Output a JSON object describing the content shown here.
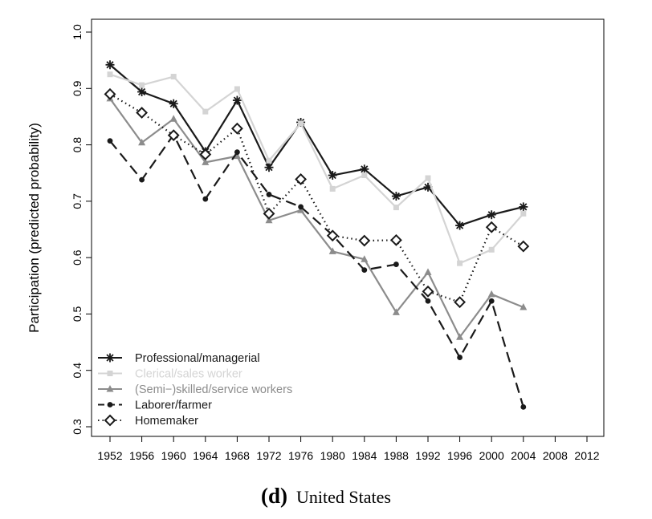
{
  "chart_data": {
    "type": "line",
    "ylabel": "Participation (predicted probability)",
    "xlabel": "",
    "x": [
      1952,
      1956,
      1960,
      1964,
      1968,
      1972,
      1976,
      1980,
      1984,
      1988,
      1992,
      1996,
      2000,
      2004
    ],
    "x_ticks": [
      "1952",
      "1956",
      "1960",
      "1964",
      "1968",
      "1972",
      "1976",
      "1980",
      "1984",
      "1988",
      "1992",
      "1996",
      "2000",
      "2004",
      "2008",
      "2012"
    ],
    "xlim": [
      1952,
      2012
    ],
    "ylim": [
      0.3,
      1.0
    ],
    "y_ticks": [
      "0.3",
      "0.4",
      "0.5",
      "0.6",
      "0.7",
      "0.8",
      "0.9",
      "1.0"
    ],
    "legend_position": "bottom-left",
    "series": [
      {
        "name": "Professional/managerial",
        "color": "#1a1a1a",
        "dash": "solid",
        "marker": "asterisk",
        "values": [
          0.942,
          0.894,
          0.873,
          0.788,
          0.879,
          0.76,
          0.84,
          0.746,
          0.757,
          0.709,
          0.725,
          0.657,
          0.676,
          0.69
        ]
      },
      {
        "name": "Clerical/sales worker",
        "color": "#d4d4d4",
        "dash": "solid",
        "marker": "square",
        "values": [
          0.925,
          0.906,
          0.921,
          0.859,
          0.899,
          0.772,
          0.838,
          0.722,
          0.746,
          0.689,
          0.741,
          0.59,
          0.614,
          0.678
        ]
      },
      {
        "name": "(Semi−)skilled/service workers",
        "color": "#8c8c8c",
        "dash": "solid",
        "marker": "triangle",
        "values": [
          0.882,
          0.804,
          0.846,
          0.769,
          0.78,
          0.666,
          0.684,
          0.611,
          0.597,
          0.503,
          0.574,
          0.459,
          0.535,
          0.512
        ]
      },
      {
        "name": "Laborer/farmer",
        "color": "#1a1a1a",
        "dash": "dashed",
        "marker": "dot",
        "values": [
          0.807,
          0.738,
          0.818,
          0.704,
          0.787,
          0.712,
          0.69,
          0.64,
          0.578,
          0.588,
          0.523,
          0.423,
          0.523,
          0.335
        ]
      },
      {
        "name": "Homemaker",
        "color": "#1a1a1a",
        "dash": "dotted",
        "marker": "diamond",
        "values": [
          0.89,
          0.857,
          0.817,
          0.783,
          0.829,
          0.678,
          0.739,
          0.639,
          0.63,
          0.631,
          0.54,
          0.521,
          0.654,
          0.62
        ]
      }
    ]
  },
  "caption": {
    "panel": "(d)",
    "text": "United States"
  }
}
